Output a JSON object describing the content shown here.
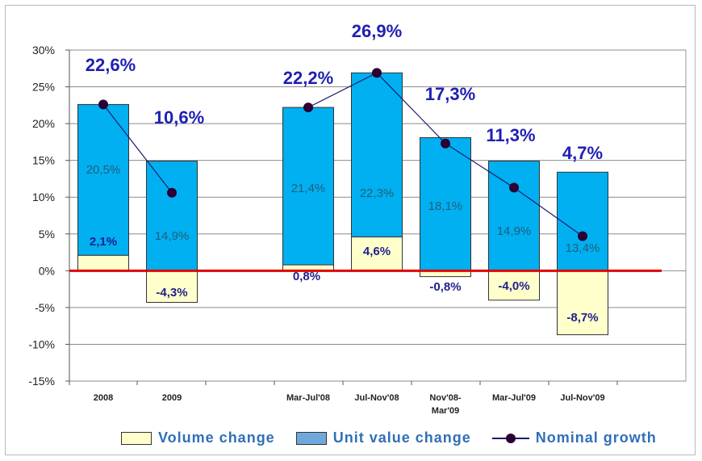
{
  "chart_data": {
    "type": "bar",
    "categories": [
      "2008",
      "2009",
      "Mar-Jul'08",
      "Jul-Nov'08",
      "Nov'08-Mar'09",
      "Mar-Jul'09",
      "Jul-Nov'09"
    ],
    "category_lines": [
      [
        "2008"
      ],
      [
        "2009"
      ],
      [
        "Mar-Jul'08"
      ],
      [
        "Jul-Nov'08"
      ],
      [
        "Nov'08-",
        "Mar'09"
      ],
      [
        "Mar-Jul'09"
      ],
      [
        "Jul-Nov'09"
      ]
    ],
    "series": [
      {
        "name": "Volume change",
        "values": [
          2.1,
          -4.3,
          0.8,
          4.6,
          -0.8,
          -4.0,
          -8.7
        ],
        "labels": [
          "2,1%",
          "-4,3%",
          "0,8%",
          "4,6%",
          "-0,8%",
          "-4,0%",
          "-8,7%"
        ],
        "color": "#ffffcc"
      },
      {
        "name": "Unit value change",
        "values": [
          20.5,
          14.9,
          21.4,
          22.3,
          18.1,
          14.9,
          13.4
        ],
        "labels": [
          "20,5%",
          "14,9%",
          "21,4%",
          "22,3%",
          "18,1%",
          "14,9%",
          "13,4%"
        ],
        "color": "#00b0f0"
      },
      {
        "name": "Nominal growth",
        "values": [
          22.6,
          10.6,
          22.2,
          26.9,
          17.3,
          11.3,
          4.7
        ],
        "labels": [
          "22,6%",
          "10,6%",
          "22,2%",
          "26,9%",
          "17,3%",
          "11,3%",
          "4,7%"
        ],
        "color": "#2b0033"
      }
    ],
    "ylim": [
      -15,
      30
    ],
    "yticks": [
      30,
      25,
      20,
      15,
      10,
      5,
      0,
      -5,
      -10,
      -15
    ],
    "ytick_labels": [
      "30%",
      "25%",
      "20%",
      "15%",
      "10%",
      "5%",
      "0%",
      "-5%",
      "-10%",
      "-15%"
    ],
    "grid": true,
    "legend_position": "bottom",
    "colors": {
      "zero_line": "#e00000",
      "growth_label": "#1f1fb4",
      "volume_label": "#1f1f8c",
      "unit_label": "#1f5e7a"
    }
  },
  "legend": {
    "volume": "Volume change",
    "unit_value": "Unit value change",
    "nominal": "Nominal growth"
  }
}
